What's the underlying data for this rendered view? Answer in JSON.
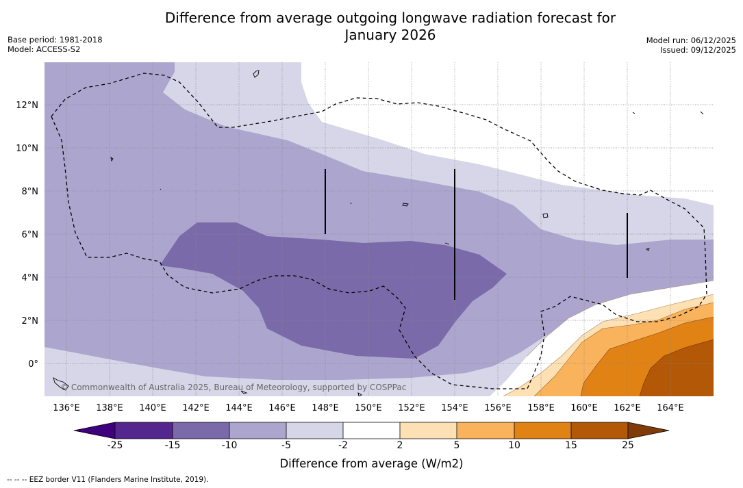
{
  "title_line1": "Difference from average outgoing longwave radiation forecast for",
  "title_line2": "January 2026",
  "meta_left": [
    "Base period: 1981-2018",
    "Model: ACCESS-S2"
  ],
  "meta_right": [
    "Model run: 06/12/2025",
    "Issued: 09/12/2025"
  ],
  "lon_ticks": [
    "136°E",
    "138°E",
    "140°E",
    "142°E",
    "144°E",
    "146°E",
    "148°E",
    "150°E",
    "152°E",
    "154°E",
    "156°E",
    "158°E",
    "160°E",
    "162°E",
    "164°E"
  ],
  "lat_ticks": [
    "12°N",
    "10°N",
    "8°N",
    "6°N",
    "4°N",
    "2°N",
    "0°"
  ],
  "copyright": "© Commonwealth of Australia 2025, Bureau of Meteorology, supported by COSPPac",
  "colorbar": {
    "title": "Difference from average (W/m2)",
    "labels": [
      "-25",
      "-15",
      "-10",
      "-5",
      "-2",
      "2",
      "5",
      "10",
      "15",
      "25"
    ],
    "colors": [
      "#3f007d",
      "#54278f",
      "#7a6aa9",
      "#aca6cf",
      "#d7d6e9",
      "#ffffff",
      "#fde0b3",
      "#f9b35c",
      "#e08214",
      "#b35806",
      "#7f3b08"
    ]
  },
  "legend": "--  --  -- EEZ border V11 (Flanders Marine Institute, 2019)."
}
